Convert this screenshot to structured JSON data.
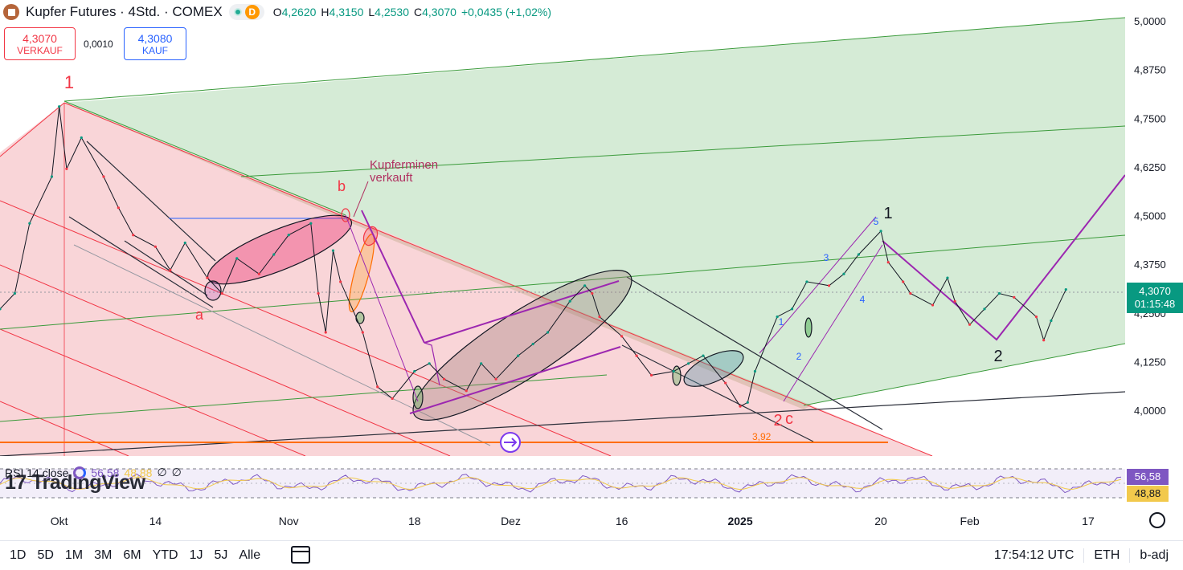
{
  "header": {
    "title": "Kupfer Futures · 4Std. · COMEX",
    "delay_badge": "D",
    "ohlc": [
      {
        "k": "O",
        "v": "4,2620"
      },
      {
        "k": "H",
        "v": "4,3150"
      },
      {
        "k": "L",
        "v": "4,2530"
      },
      {
        "k": "C",
        "v": "4,3070"
      },
      {
        "k": "",
        "v": "+0,0435 (+1,02%)"
      }
    ]
  },
  "trade": {
    "sell_price": "4,3070",
    "sell_label": "VERKAUF",
    "spread": "0,0010",
    "buy_price": "4,3080",
    "buy_label": "KAUF"
  },
  "price_tag": {
    "price": "4,3070",
    "countdown": "01:15:48"
  },
  "rsi": {
    "label": "RSI 14 close",
    "value": "56,58",
    "ma_value": "48,88",
    "tag_value": "56,58",
    "tag_ma": "48,88"
  },
  "logo_text": "17 TradingView",
  "bottom": {
    "ranges": [
      "1D",
      "5D",
      "1M",
      "3M",
      "6M",
      "YTD",
      "1J",
      "5J",
      "Alle"
    ],
    "clock": "17:54:12 UTC",
    "session": "ETH",
    "adjust": "b-adj"
  },
  "colors": {
    "up": "#089981",
    "down": "#f23645",
    "green_zone": "#d5ebd6",
    "red_zone": "#f9d5d8",
    "purple": "#9c27b0"
  },
  "chart_data": {
    "type": "line",
    "title": "Kupfer Futures · 4Std. · COMEX",
    "y_ticks": [
      5.0,
      4.875,
      4.75,
      4.625,
      4.5,
      4.375,
      4.25,
      4.125,
      4.0
    ],
    "y_tick_labels": [
      "5,0000",
      "4,8750",
      "4,7500",
      "4,6250",
      "4,5000",
      "4,3750",
      "4,2500",
      "4,1250",
      "4,0000"
    ],
    "ylim": [
      3.9,
      5.05
    ],
    "x_tick_labels": [
      {
        "label": "Okt",
        "d": "2024-10-01"
      },
      {
        "label": "14",
        "d": "2024-10-14"
      },
      {
        "label": "Nov",
        "d": "2024-11-01"
      },
      {
        "label": "18",
        "d": "2024-11-18"
      },
      {
        "label": "Dez",
        "d": "2024-12-01"
      },
      {
        "label": "16",
        "d": "2024-12-16"
      },
      {
        "label": "2025",
        "d": "2025-01-01",
        "bold": true
      },
      {
        "label": "20",
        "d": "2025-01-20"
      },
      {
        "label": "Feb",
        "d": "2025-02-01"
      },
      {
        "label": "17",
        "d": "2025-02-17"
      }
    ],
    "xlim": [
      "2024-09-23",
      "2025-02-22"
    ],
    "series": [
      {
        "values": [
          [
            "2024-09-23",
            4.26
          ],
          [
            "2024-09-25",
            4.3
          ],
          [
            "2024-09-27",
            4.48
          ],
          [
            "2024-09-30",
            4.6
          ],
          [
            "2024-10-01",
            4.78
          ],
          [
            "2024-10-02",
            4.62
          ],
          [
            "2024-10-04",
            4.7
          ],
          [
            "2024-10-07",
            4.6
          ],
          [
            "2024-10-09",
            4.52
          ],
          [
            "2024-10-11",
            4.45
          ],
          [
            "2024-10-14",
            4.42
          ],
          [
            "2024-10-16",
            4.36
          ],
          [
            "2024-10-18",
            4.43
          ],
          [
            "2024-10-21",
            4.34
          ],
          [
            "2024-10-23",
            4.3
          ],
          [
            "2024-10-25",
            4.39
          ],
          [
            "2024-10-28",
            4.35
          ],
          [
            "2024-10-30",
            4.4
          ],
          [
            "2024-11-01",
            4.45
          ],
          [
            "2024-11-04",
            4.48
          ],
          [
            "2024-11-05",
            4.3
          ],
          [
            "2024-11-06",
            4.2
          ],
          [
            "2024-11-07",
            4.41
          ],
          [
            "2024-11-08",
            4.33
          ],
          [
            "2024-11-11",
            4.2
          ],
          [
            "2024-11-13",
            4.06
          ],
          [
            "2024-11-15",
            4.03
          ],
          [
            "2024-11-18",
            4.1
          ],
          [
            "2024-11-20",
            4.12
          ],
          [
            "2024-11-22",
            4.08
          ],
          [
            "2024-11-25",
            4.05
          ],
          [
            "2024-11-27",
            4.12
          ],
          [
            "2024-11-29",
            4.08
          ],
          [
            "2024-12-02",
            4.14
          ],
          [
            "2024-12-04",
            4.17
          ],
          [
            "2024-12-06",
            4.2
          ],
          [
            "2024-12-09",
            4.28
          ],
          [
            "2024-12-11",
            4.32
          ],
          [
            "2024-12-12",
            4.3
          ],
          [
            "2024-12-13",
            4.24
          ],
          [
            "2024-12-16",
            4.19
          ],
          [
            "2024-12-18",
            4.14
          ],
          [
            "2024-12-20",
            4.09
          ],
          [
            "2024-12-23",
            4.1
          ],
          [
            "2024-12-25",
            4.12
          ],
          [
            "2024-12-27",
            4.14
          ],
          [
            "2024-12-30",
            4.07
          ],
          [
            "2025-01-01",
            4.01
          ],
          [
            "2025-01-02",
            4.02
          ],
          [
            "2025-01-03",
            4.1
          ],
          [
            "2025-01-06",
            4.24
          ],
          [
            "2025-01-08",
            4.26
          ],
          [
            "2025-01-10",
            4.33
          ],
          [
            "2025-01-13",
            4.32
          ],
          [
            "2025-01-15",
            4.35
          ],
          [
            "2025-01-17",
            4.4
          ],
          [
            "2025-01-20",
            4.46
          ],
          [
            "2025-01-21",
            4.38
          ],
          [
            "2025-01-23",
            4.33
          ],
          [
            "2025-01-24",
            4.3
          ],
          [
            "2025-01-27",
            4.27
          ],
          [
            "2025-01-29",
            4.34
          ],
          [
            "2025-01-30",
            4.28
          ],
          [
            "2025-02-01",
            4.22
          ],
          [
            "2025-02-03",
            4.26
          ],
          [
            "2025-02-05",
            4.3
          ],
          [
            "2025-02-07",
            4.29
          ],
          [
            "2025-02-10",
            4.24
          ],
          [
            "2025-02-11",
            4.18
          ],
          [
            "2025-02-12",
            4.23
          ],
          [
            "2025-02-14",
            4.31
          ]
        ]
      }
    ],
    "reference_line": {
      "value": 3.92,
      "label": "3,92",
      "color": "#ff9800"
    },
    "annotations": [
      {
        "text": "1",
        "color": "#f23645"
      },
      {
        "text": "a",
        "color": "#f23645"
      },
      {
        "text": "b",
        "color": "#f23645"
      },
      {
        "text": "Kupferminen",
        "color": "#b03060"
      },
      {
        "text": "verkauft",
        "color": "#b03060"
      },
      {
        "text": "1",
        "color": "#131722"
      },
      {
        "text": "2",
        "color": "#f23645"
      },
      {
        "text": "c",
        "color": "#f23645"
      },
      {
        "text": "2",
        "color": "#131722"
      },
      {
        "text": "1",
        "color": "#2962ff"
      },
      {
        "text": "2",
        "color": "#2962ff"
      },
      {
        "text": "3",
        "color": "#2962ff"
      },
      {
        "text": "4",
        "color": "#2962ff"
      },
      {
        "text": "5",
        "color": "#2962ff"
      }
    ],
    "grid": false
  }
}
